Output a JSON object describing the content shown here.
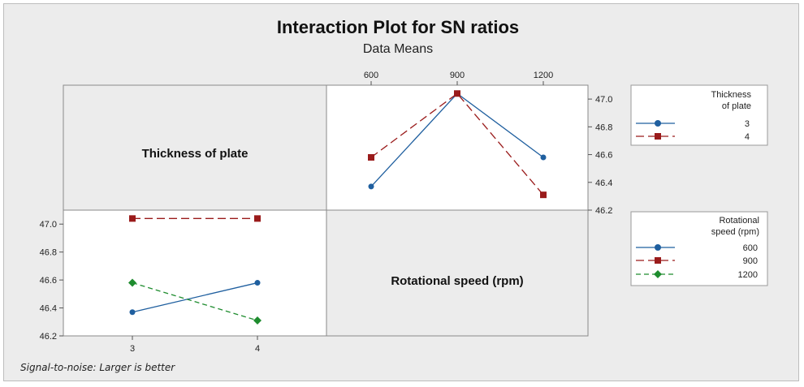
{
  "title": "Interaction Plot for SN ratios",
  "subtitle": "Data Means",
  "footnote": "Signal-to-noise: Larger is better",
  "colors": {
    "series1": "#1f5f9f",
    "series2": "#9a1b1b",
    "series3": "#1e8c2e"
  },
  "chart_data": [
    {
      "type": "line",
      "panel": "top-right",
      "factor_x": "Rotational speed (rpm)",
      "grouped_by": "Thickness of plate",
      "x": [
        600,
        900,
        1200
      ],
      "ylim": [
        46.2,
        47.1
      ],
      "y_ticks": [
        46.2,
        46.4,
        46.6,
        46.8,
        47.0
      ],
      "y_tick_labels": [
        "46.2",
        "46.4",
        "46.6",
        "46.8",
        "47.0"
      ],
      "x_tick_labels": [
        "600",
        "900",
        "1200"
      ],
      "series": [
        {
          "name": "3",
          "values": [
            46.37,
            47.04,
            46.58
          ]
        },
        {
          "name": "4",
          "values": [
            46.58,
            47.04,
            46.31
          ]
        }
      ]
    },
    {
      "type": "line",
      "panel": "bottom-left",
      "factor_x": "Thickness of plate",
      "grouped_by": "Rotational speed (rpm)",
      "x": [
        3,
        4
      ],
      "ylim": [
        46.2,
        47.1
      ],
      "y_ticks": [
        46.2,
        46.4,
        46.6,
        46.8,
        47.0
      ],
      "y_tick_labels": [
        "46.2",
        "46.4",
        "46.6",
        "46.8",
        "47.0"
      ],
      "x_tick_labels": [
        "3",
        "4"
      ],
      "series": [
        {
          "name": "600",
          "values": [
            46.37,
            46.58
          ]
        },
        {
          "name": "900",
          "values": [
            47.04,
            47.04
          ]
        },
        {
          "name": "1200",
          "values": [
            46.58,
            46.31
          ]
        }
      ]
    }
  ],
  "panels": {
    "top_left_label": "Thickness of plate",
    "bottom_right_label": "Rotational speed (rpm)"
  },
  "legends": [
    {
      "title_lines": [
        "Thickness",
        "of plate"
      ],
      "entries": [
        "3",
        "4"
      ]
    },
    {
      "title_lines": [
        "Rotational",
        "speed (rpm)"
      ],
      "entries": [
        "600",
        "900",
        "1200"
      ]
    }
  ]
}
